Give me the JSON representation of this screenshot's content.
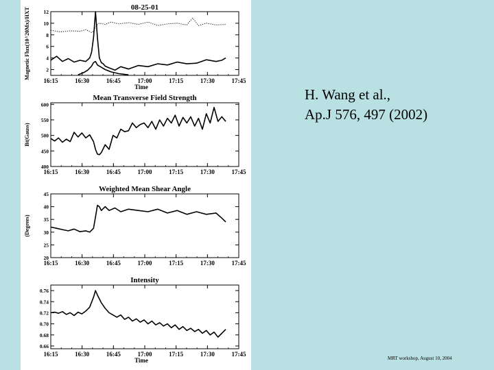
{
  "slide": {
    "citation_line1": "H. Wang et al.,",
    "citation_line2": "Ap.J 576, 497 (2002)",
    "footer": "MRT workshop, August 10, 2004",
    "background_color": "#b9e0e3"
  },
  "chart_data": [
    {
      "type": "line",
      "title": "08-25-01",
      "xlabel": "Time",
      "ylabel": "Magnetic Flux(10^20Mx)/HXT",
      "xticks": [
        "16:15",
        "16:30",
        "16:45",
        "17:00",
        "17:15",
        "17:30",
        "17:45"
      ],
      "yticks": [
        "2",
        "4",
        "6",
        "8",
        "10",
        "12"
      ],
      "xlim": [
        0,
        90
      ],
      "ylim": [
        1,
        12
      ],
      "series": [
        {
          "style": "dotted",
          "x": [
            0,
            5,
            10,
            15,
            18,
            21,
            22,
            23,
            24,
            25,
            28,
            31,
            35,
            40,
            45,
            50,
            55,
            60,
            65,
            70,
            73,
            76,
            80,
            85,
            90
          ],
          "y": [
            8.8,
            8.5,
            8.7,
            8.6,
            8.9,
            8.4,
            8.6,
            9.3,
            9.8,
            10.0,
            9.8,
            10.2,
            9.9,
            10.1,
            9.8,
            10.2,
            9.6,
            9.9,
            10.0,
            9.7,
            10.9,
            9.6,
            10.0,
            9.7,
            9.8
          ]
        },
        {
          "style": "solid",
          "x": [
            0,
            3,
            6,
            9,
            12,
            15,
            18,
            20,
            21,
            22,
            23,
            24,
            25,
            26,
            27,
            28,
            30,
            33,
            36,
            40,
            45,
            50,
            55,
            60,
            65,
            70,
            75,
            80,
            85,
            88,
            90
          ],
          "y": [
            3.6,
            4.3,
            3.4,
            3.9,
            3.3,
            3.6,
            3.4,
            4.0,
            5.0,
            7.5,
            12.0,
            7.5,
            4.0,
            3.2,
            3.0,
            2.6,
            2.3,
            1.9,
            2.5,
            2.1,
            2.7,
            2.5,
            3.0,
            2.8,
            3.3,
            3.0,
            3.1,
            3.7,
            3.4,
            3.6,
            4.0
          ]
        },
        {
          "style": "solid",
          "x": [
            14,
            17,
            19,
            21,
            22,
            23,
            24,
            26,
            28,
            31,
            35,
            40
          ],
          "y": [
            1.1,
            1.5,
            1.9,
            2.6,
            3.2,
            3.4,
            2.8,
            2.4,
            2.0,
            1.6,
            1.3,
            1.1
          ]
        }
      ]
    },
    {
      "type": "line",
      "title": "Mean Transverse Field Strength",
      "xlabel": "",
      "ylabel": "Bt(Gauss)",
      "xticks": [
        "16:15",
        "16:30",
        "16:45",
        "17:00",
        "17:15",
        "17:30",
        "17:45"
      ],
      "yticks": [
        "400",
        "450",
        "500",
        "550",
        "600"
      ],
      "xlim": [
        0,
        90
      ],
      "ylim": [
        400,
        605
      ],
      "series": [
        {
          "style": "solid",
          "x": [
            0,
            2,
            4,
            6,
            8,
            10,
            12,
            14,
            16,
            18,
            20,
            22,
            23,
            24,
            25,
            26,
            28,
            30,
            32,
            34,
            36,
            38,
            40,
            42,
            44,
            46,
            48,
            50,
            52,
            54,
            56,
            58,
            60,
            62,
            64,
            66,
            68,
            70,
            72,
            74,
            76,
            78,
            80,
            82,
            84,
            86,
            88,
            90
          ],
          "y": [
            490,
            482,
            492,
            478,
            488,
            480,
            510,
            495,
            508,
            492,
            502,
            480,
            455,
            440,
            438,
            445,
            470,
            455,
            500,
            492,
            520,
            512,
            515,
            540,
            525,
            535,
            540,
            525,
            545,
            520,
            550,
            530,
            555,
            540,
            565,
            530,
            558,
            540,
            560,
            530,
            555,
            520,
            570,
            540,
            590,
            545,
            560,
            545
          ]
        }
      ]
    },
    {
      "type": "line",
      "title": "Weighted Mean Shear Angle",
      "xlabel": "",
      "ylabel": "(Degrees)",
      "xticks": [
        "16:15",
        "16:30",
        "16:45",
        "17:00",
        "17:15",
        "17:30",
        "17:45"
      ],
      "yticks": [
        "20",
        "25",
        "30",
        "35",
        "40",
        "45"
      ],
      "xlim": [
        0,
        90
      ],
      "ylim": [
        20,
        45
      ],
      "series": [
        {
          "style": "solid",
          "x": [
            0,
            3,
            6,
            9,
            12,
            15,
            18,
            20,
            22,
            23,
            24,
            25,
            26,
            28,
            30,
            33,
            36,
            40,
            45,
            50,
            55,
            60,
            65,
            70,
            75,
            80,
            85,
            88,
            90
          ],
          "y": [
            32,
            31.5,
            31,
            30.5,
            31.2,
            30.2,
            30.5,
            30.0,
            31.5,
            36.0,
            40.5,
            40.0,
            38.5,
            40.0,
            38.5,
            39.5,
            38.0,
            39.0,
            38.5,
            38.0,
            39.0,
            37.5,
            38.5,
            37.0,
            38.0,
            37.0,
            37.5,
            35.5,
            34.0
          ]
        }
      ]
    },
    {
      "type": "line",
      "title": "Intensity",
      "xlabel": "Time",
      "ylabel": "",
      "xticks": [
        "16:15",
        "16:30",
        "16:45",
        "17:00",
        "17:15",
        "17:30",
        "17:45"
      ],
      "yticks": [
        "0.66",
        "0.68",
        "0.70",
        "0.72",
        "0.74",
        "0.76"
      ],
      "xlim": [
        0,
        90
      ],
      "ylim": [
        0.655,
        0.77
      ],
      "series": [
        {
          "style": "solid",
          "x": [
            0,
            2,
            4,
            6,
            8,
            10,
            12,
            14,
            16,
            18,
            20,
            22,
            23,
            24,
            26,
            28,
            30,
            32,
            34,
            36,
            38,
            40,
            42,
            44,
            46,
            48,
            50,
            52,
            54,
            56,
            58,
            60,
            62,
            64,
            66,
            68,
            70,
            72,
            74,
            76,
            78,
            80,
            82,
            84,
            86,
            88,
            90
          ],
          "y": [
            0.72,
            0.721,
            0.719,
            0.722,
            0.717,
            0.72,
            0.715,
            0.721,
            0.718,
            0.723,
            0.73,
            0.748,
            0.76,
            0.752,
            0.738,
            0.728,
            0.72,
            0.716,
            0.712,
            0.716,
            0.708,
            0.712,
            0.705,
            0.709,
            0.703,
            0.707,
            0.7,
            0.705,
            0.698,
            0.702,
            0.696,
            0.7,
            0.693,
            0.698,
            0.69,
            0.695,
            0.688,
            0.692,
            0.686,
            0.69,
            0.683,
            0.688,
            0.68,
            0.685,
            0.676,
            0.683,
            0.69
          ]
        }
      ]
    }
  ]
}
